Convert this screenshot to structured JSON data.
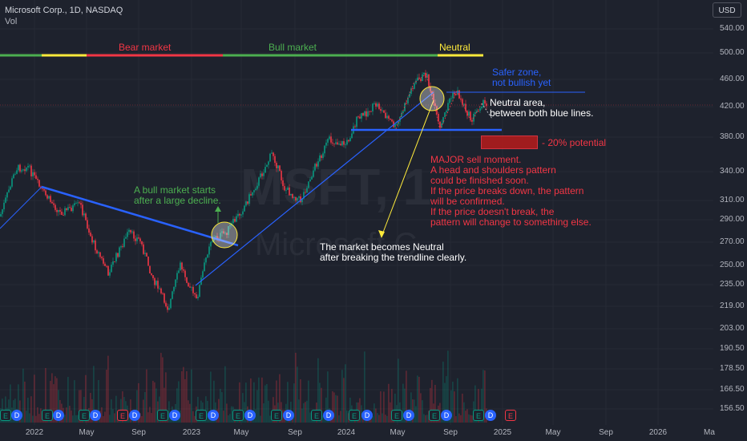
{
  "header": {
    "title": "Microsoft Corp., 1D, NASDAQ",
    "volume_label": "Vol"
  },
  "currency_button": "USD",
  "watermark": {
    "ticker": "MSFT, 1",
    "name": "Microsoft C"
  },
  "y_axis": [
    "540.00",
    "500.00",
    "460.00",
    "420.00",
    "380.00",
    "340.00",
    "310.00",
    "290.00",
    "270.00",
    "250.00",
    "235.00",
    "219.00",
    "203.00",
    "190.50",
    "178.50",
    "166.50",
    "156.50"
  ],
  "x_axis": [
    "2022",
    "May",
    "Sep",
    "2023",
    "May",
    "Sep",
    "2024",
    "May",
    "Sep",
    "2025",
    "May",
    "Sep",
    "2026",
    "Ma"
  ],
  "phases": {
    "bear": "Bear market",
    "bull": "Bull market",
    "neutral": "Neutral"
  },
  "annotations": {
    "safer_zone": [
      "Safer zone,",
      "not bullish yet"
    ],
    "neutral_area": [
      "Neutral area,",
      "between both blue lines."
    ],
    "potential": "- 20% potential",
    "sell_moment": [
      "MAJOR sell moment.",
      "A head and shoulders pattern",
      "could be finished soon.",
      "If the price breaks down, the pattern",
      "will be confirmed.",
      "If the price doesn't break, the",
      "pattern will change to something else."
    ],
    "bull_start": [
      "A bull market starts",
      "after a large decline."
    ],
    "market_neutral": [
      "The market becomes Neutral",
      "after breaking the trendline clearly."
    ]
  },
  "events": [
    {
      "kind": "E"
    },
    {
      "kind": "D"
    },
    {
      "kind": "E"
    },
    {
      "kind": "D"
    },
    {
      "kind": "E"
    },
    {
      "kind": "D"
    },
    {
      "kind": "E"
    },
    {
      "kind": "D"
    },
    {
      "kind": "E"
    },
    {
      "kind": "D"
    },
    {
      "kind": "E"
    },
    {
      "kind": "D"
    },
    {
      "kind": "E"
    },
    {
      "kind": "D"
    },
    {
      "kind": "E"
    },
    {
      "kind": "D"
    },
    {
      "kind": "E"
    },
    {
      "kind": "D"
    },
    {
      "kind": "E"
    },
    {
      "kind": "D"
    },
    {
      "kind": "E"
    },
    {
      "kind": "D"
    },
    {
      "kind": "E"
    },
    {
      "kind": "D"
    },
    {
      "kind": "E"
    },
    {
      "kind": "D"
    },
    {
      "kind": "E"
    },
    {
      "kind": "D"
    },
    {
      "kind": "E"
    },
    {
      "kind": "D"
    },
    {
      "kind": "E"
    }
  ],
  "colors": {
    "bg": "#1e222d",
    "up": "#089981",
    "down": "#f23645",
    "trend": "#2962ff",
    "grid": "#2a2e39"
  }
}
